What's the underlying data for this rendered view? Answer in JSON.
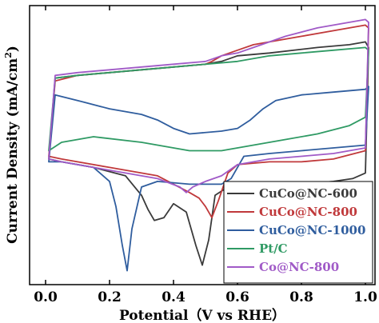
{
  "chart_data": {
    "type": "line",
    "title": "",
    "xlabel": "Potential（V vs RHE）",
    "ylabel": "Current Density (mA/cm²)",
    "ylabel_main": "Current Density (mA/cm",
    "ylabel_sup": "2",
    "ylabel_close": ")",
    "xlim": [
      -0.05,
      1.03
    ],
    "ylim": [
      0,
      100
    ],
    "y_tick_labels_shown": false,
    "xticks": [
      0.0,
      0.2,
      0.4,
      0.6,
      0.8,
      1.0
    ],
    "xtick_labels": [
      "0.0",
      "0.2",
      "0.4",
      "0.6",
      "0.8",
      "1.0"
    ],
    "grid": false,
    "legend_position": "bottom-right",
    "series": [
      {
        "name": "CuCo@NC-600",
        "color": "#3a3a3a",
        "x": [
          0.01,
          0.05,
          0.15,
          0.25,
          0.3,
          0.32,
          0.34,
          0.37,
          0.4,
          0.44,
          0.47,
          0.49,
          0.51,
          0.53,
          0.57,
          0.6,
          0.7,
          0.8,
          0.9,
          0.96,
          1.0,
          1.01,
          1.0,
          0.95,
          0.85,
          0.7,
          0.6,
          0.55,
          0.5,
          0.4,
          0.3,
          0.2,
          0.1,
          0.03,
          0.01
        ],
        "y": [
          45,
          44,
          42,
          39,
          32,
          27,
          23,
          24,
          29,
          26,
          14,
          7,
          16,
          32,
          35,
          36,
          36,
          36,
          37,
          38,
          40,
          85,
          87,
          86,
          85,
          83,
          82,
          80,
          79,
          78,
          77,
          76,
          75,
          74,
          45
        ]
      },
      {
        "name": "CuCo@NC-800",
        "color": "#c0393b",
        "x": [
          0.01,
          0.05,
          0.2,
          0.35,
          0.45,
          0.48,
          0.5,
          0.52,
          0.54,
          0.57,
          0.6,
          0.7,
          0.8,
          0.9,
          1.0,
          1.01,
          1.0,
          0.95,
          0.8,
          0.65,
          0.6,
          0.55,
          0.52,
          0.5,
          0.4,
          0.3,
          0.2,
          0.1,
          0.03,
          0.01
        ],
        "y": [
          46,
          45,
          42,
          39,
          33,
          31,
          28,
          24,
          30,
          40,
          43,
          44,
          44,
          45,
          48,
          92,
          93,
          92,
          89,
          86,
          84,
          82,
          80,
          79,
          78,
          77,
          76,
          75,
          73,
          46
        ]
      },
      {
        "name": "CuCo@NC-1000",
        "color": "#2f5d9e",
        "x": [
          0.01,
          0.05,
          0.15,
          0.2,
          0.22,
          0.24,
          0.255,
          0.27,
          0.3,
          0.35,
          0.45,
          0.5,
          0.55,
          0.58,
          0.62,
          0.7,
          0.8,
          0.9,
          1.0,
          1.01,
          1.0,
          0.9,
          0.8,
          0.72,
          0.68,
          0.64,
          0.6,
          0.55,
          0.45,
          0.4,
          0.35,
          0.3,
          0.2,
          0.1,
          0.03,
          0.01
        ],
        "y": [
          44,
          44,
          42,
          37,
          28,
          14,
          5,
          20,
          35,
          37,
          36,
          36,
          36,
          38,
          46,
          47,
          48,
          49,
          50,
          71,
          70,
          69,
          68,
          66,
          63,
          59,
          56,
          55,
          54,
          56,
          59,
          61,
          63,
          66,
          68,
          44
        ]
      },
      {
        "name": "Pt/C",
        "color": "#2f9a64",
        "x": [
          0.01,
          0.05,
          0.15,
          0.3,
          0.45,
          0.55,
          0.6,
          0.65,
          0.75,
          0.85,
          0.95,
          1.0,
          1.01,
          1.0,
          0.9,
          0.8,
          0.7,
          0.6,
          0.5,
          0.4,
          0.3,
          0.2,
          0.1,
          0.03,
          0.01
        ],
        "y": [
          48,
          51,
          53,
          51,
          48,
          48,
          49,
          50,
          52,
          54,
          57,
          60,
          84,
          85,
          84,
          83,
          82,
          80,
          79,
          78,
          77,
          76,
          75,
          74,
          48
        ]
      },
      {
        "name": "Co@NC-800",
        "color": "#a05ac7",
        "x": [
          0.01,
          0.05,
          0.15,
          0.25,
          0.35,
          0.42,
          0.44,
          0.46,
          0.5,
          0.55,
          0.6,
          0.7,
          0.8,
          0.9,
          1.0,
          1.01,
          1.0,
          0.95,
          0.85,
          0.75,
          0.7,
          0.65,
          0.6,
          0.55,
          0.5,
          0.4,
          0.3,
          0.2,
          0.1,
          0.03,
          0.01
        ],
        "y": [
          45,
          44,
          42,
          40,
          38,
          35,
          33,
          35,
          37,
          39,
          43,
          45,
          46,
          47,
          49,
          94,
          95,
          94,
          92,
          89,
          87,
          85,
          83,
          82,
          80,
          79,
          78,
          77,
          76,
          75,
          45
        ]
      }
    ]
  }
}
